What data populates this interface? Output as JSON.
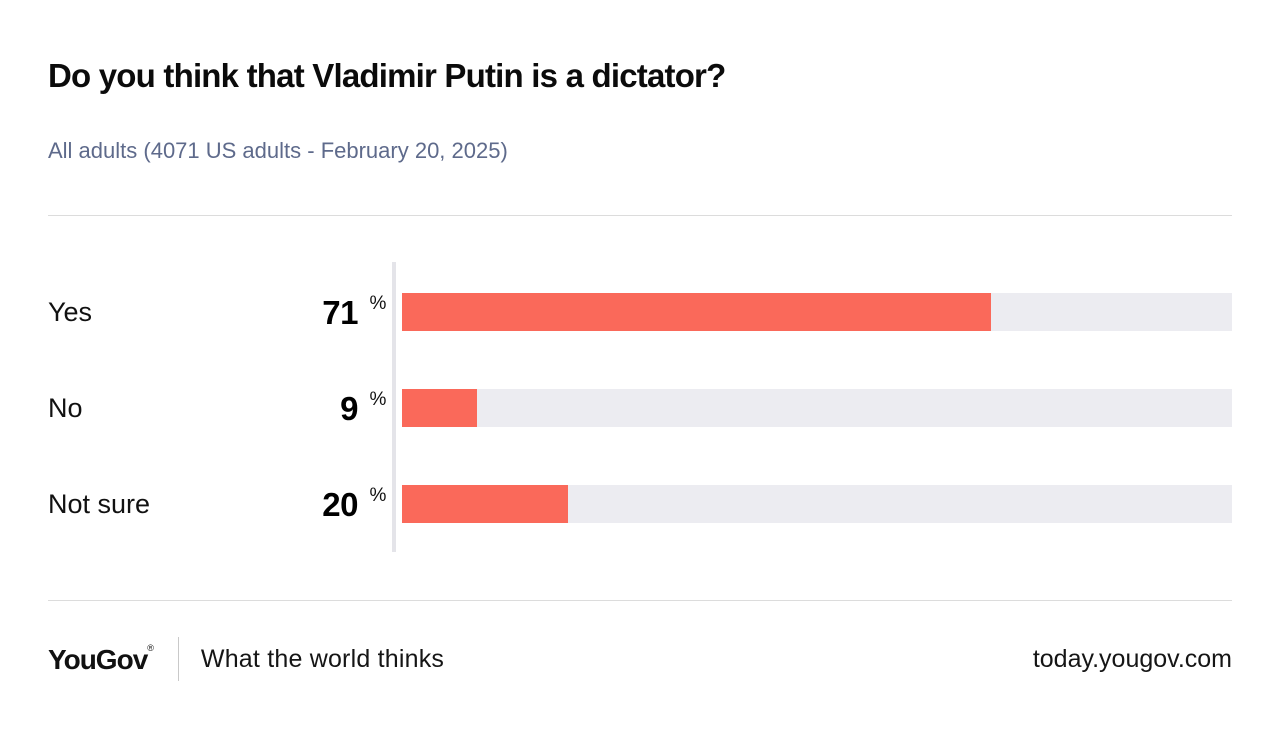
{
  "title": "Do you think that Vladimir Putin is a dictator?",
  "subtitle": "All adults (4071 US adults - February 20, 2025)",
  "footer": {
    "logo": "YouGov",
    "registered_mark": "®",
    "tagline": "What the world thinks",
    "site": "today.yougov.com"
  },
  "colors": {
    "bar": "#fa695a",
    "track": "#ececf1",
    "axis": "#e4e4e9",
    "subtitle_text": "#5e6a8b",
    "divider": "#dcdcdc"
  },
  "chart_data": {
    "type": "bar",
    "orientation": "horizontal",
    "title": "Do you think that Vladimir Putin is a dictator?",
    "subtitle": "All adults (4071 US adults - February 20, 2025)",
    "categories": [
      "Yes",
      "No",
      "Not sure"
    ],
    "values": [
      71,
      9,
      20
    ],
    "value_unit": "%",
    "xlim": [
      0,
      100
    ],
    "grid": false,
    "legend": false,
    "bar_color": "#fa695a",
    "track_color": "#ececf1"
  }
}
